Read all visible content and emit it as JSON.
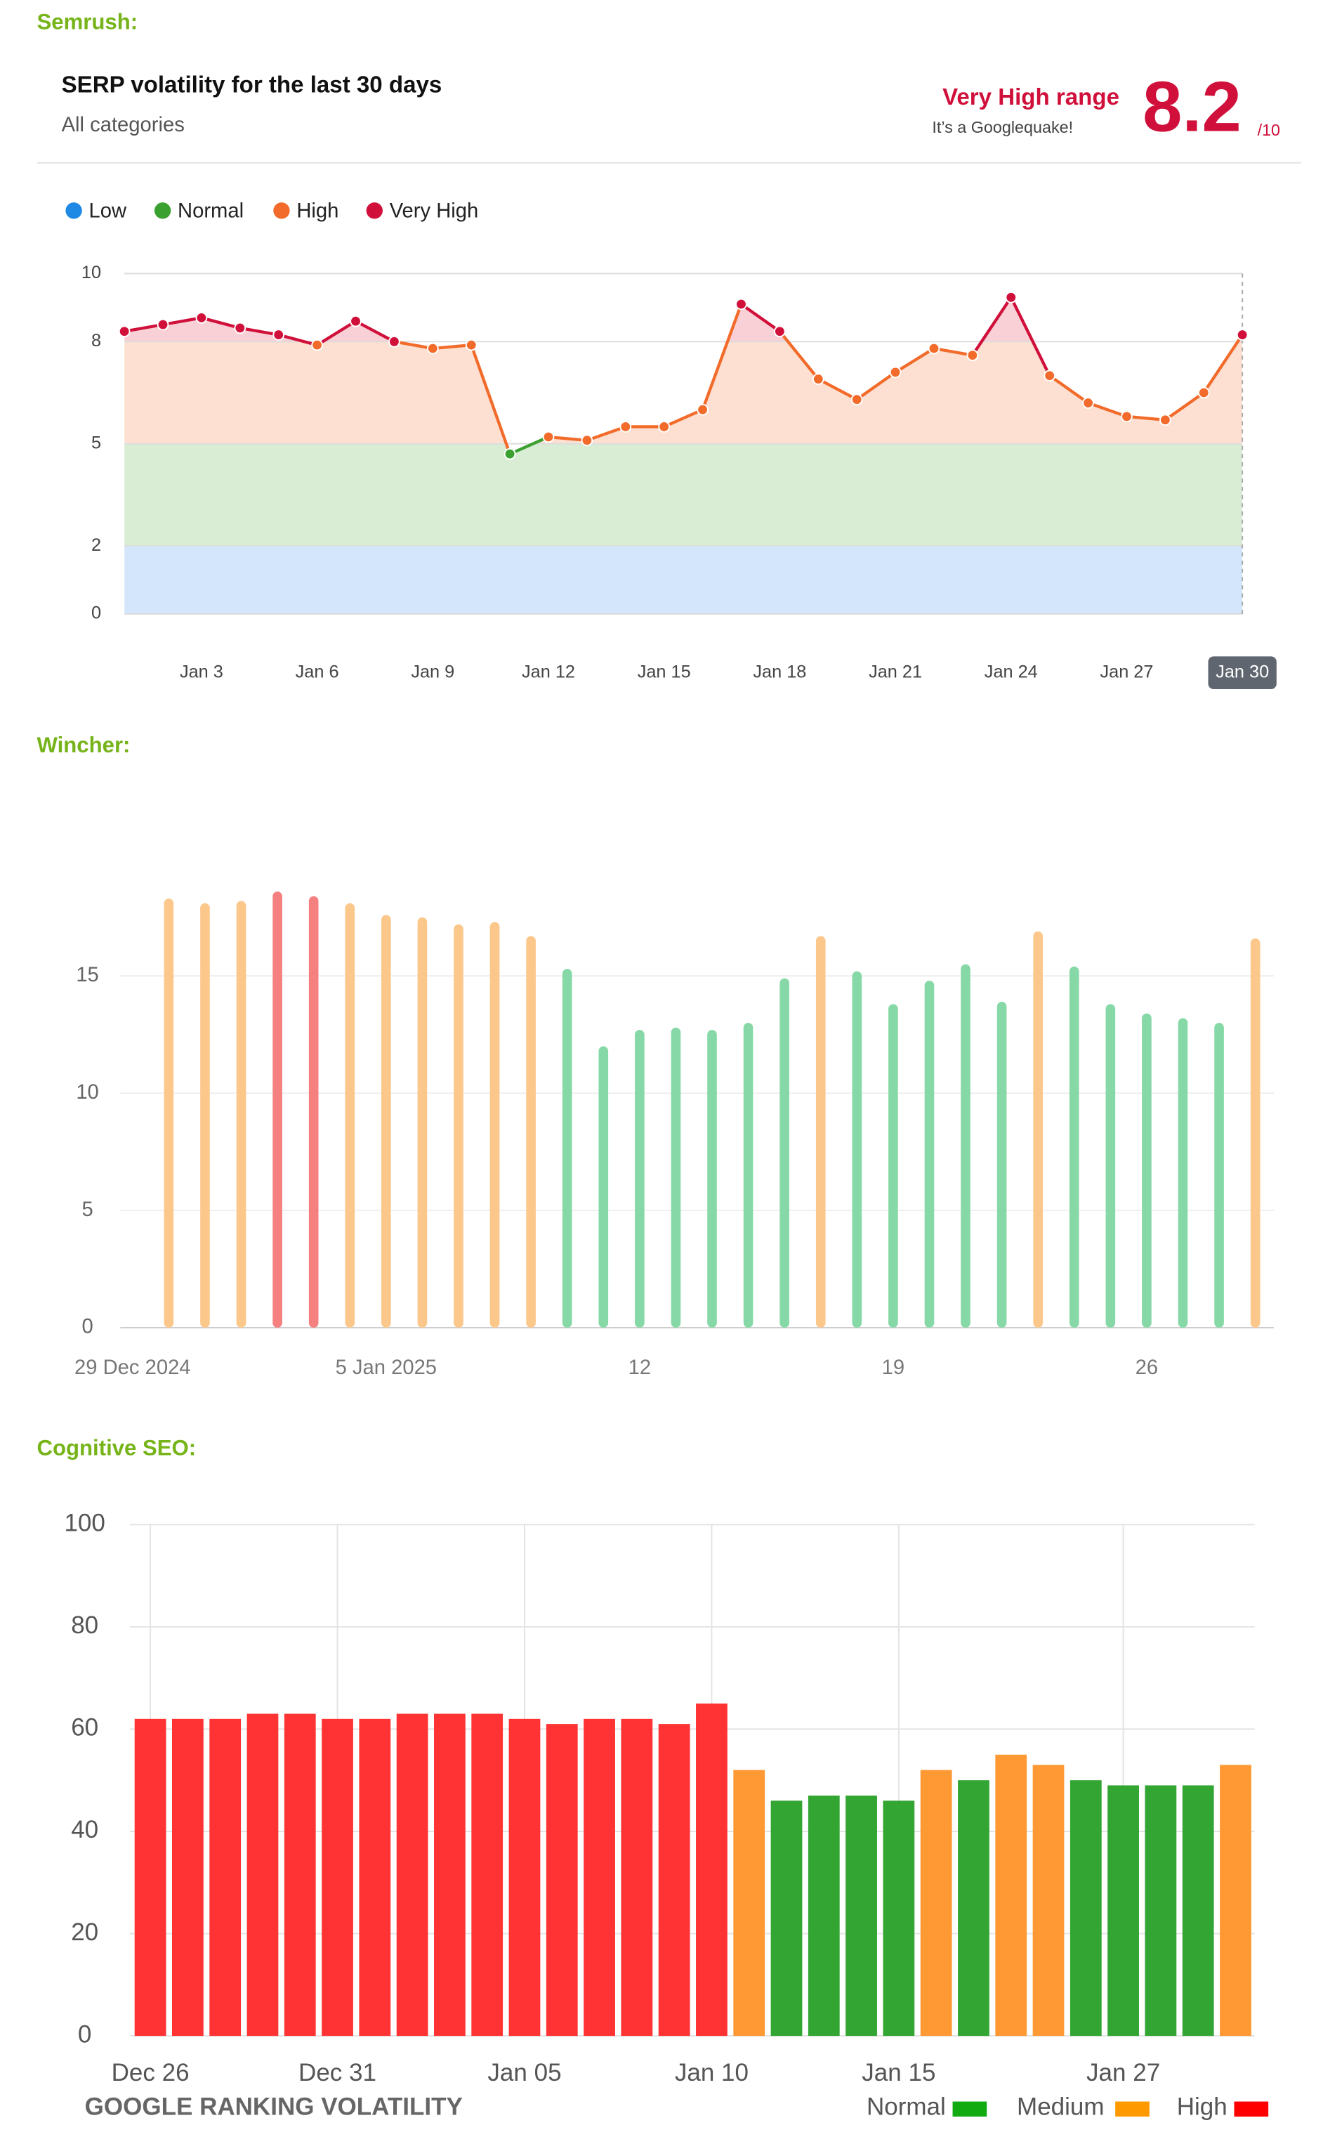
{
  "chart_data": [
    {
      "type": "line",
      "source": "Semrush:",
      "title": "SERP volatility for the last 30 days",
      "subtitle": "All categories",
      "range_label": "Very High range",
      "range_note": "It’s a Googlequake!",
      "score": 8.2,
      "score_suffix": "/10",
      "levels": [
        {
          "name": "Low",
          "color": "#1e88e5",
          "fill": "#d3e6fb",
          "range": [
            0,
            2
          ]
        },
        {
          "name": "Normal",
          "color": "#3aa030",
          "fill": "#d9ecd4",
          "range": [
            2,
            5
          ]
        },
        {
          "name": "High",
          "color": "#f26b2a",
          "fill": "#fde0d2",
          "range": [
            5,
            8
          ]
        },
        {
          "name": "Very High",
          "color": "#d0103a",
          "fill": "#f9d0d6",
          "range": [
            8,
            10
          ]
        }
      ],
      "categories": [
        null,
        null,
        "Jan 3",
        null,
        null,
        "Jan 6",
        null,
        null,
        "Jan 9",
        null,
        null,
        "Jan 12",
        null,
        null,
        "Jan 15",
        null,
        null,
        "Jan 18",
        null,
        null,
        "Jan 21",
        null,
        null,
        "Jan 24",
        null,
        null,
        "Jan 27",
        null,
        null,
        "Jan 30"
      ],
      "values": [
        8.3,
        8.5,
        8.7,
        8.4,
        8.2,
        7.9,
        8.6,
        8.0,
        7.8,
        7.9,
        4.7,
        5.2,
        5.1,
        5.5,
        5.5,
        6.0,
        9.1,
        8.3,
        6.9,
        6.3,
        7.1,
        7.8,
        7.6,
        9.3,
        7.0,
        6.2,
        5.8,
        5.7,
        6.5,
        8.2
      ],
      "ylim": [
        0,
        10
      ],
      "yticks": [
        0,
        2,
        5,
        8,
        10
      ],
      "grid": true
    },
    {
      "type": "bar",
      "source": "Wincher:",
      "categories": [
        "29 Dec 2024",
        null,
        null,
        null,
        null,
        null,
        null,
        "5 Jan 2025",
        null,
        null,
        null,
        null,
        null,
        null,
        "12",
        null,
        null,
        null,
        null,
        null,
        null,
        "19",
        null,
        null,
        null,
        null,
        null,
        null,
        "26",
        null,
        null,
        null
      ],
      "values": [
        null,
        18.3,
        18.1,
        18.2,
        18.6,
        18.4,
        18.1,
        17.6,
        17.5,
        17.2,
        17.3,
        16.7,
        15.3,
        12.0,
        12.7,
        12.8,
        12.7,
        13.0,
        14.9,
        16.7,
        15.2,
        13.8,
        14.8,
        15.5,
        13.9,
        16.9,
        15.4,
        13.8,
        13.4,
        13.2,
        13.0,
        16.6
      ],
      "colors": [
        null,
        "#fcc78b",
        "#fcc78b",
        "#fcc78b",
        "#f48080",
        "#f48080",
        "#fcc78b",
        "#fcc78b",
        "#fcc78b",
        "#fcc78b",
        "#fcc78b",
        "#fcc78b",
        "#86d9a6",
        "#86d9a6",
        "#86d9a6",
        "#86d9a6",
        "#86d9a6",
        "#86d9a6",
        "#86d9a6",
        "#fcc78b",
        "#86d9a6",
        "#86d9a6",
        "#86d9a6",
        "#86d9a6",
        "#86d9a6",
        "#fcc78b",
        "#86d9a6",
        "#86d9a6",
        "#86d9a6",
        "#86d9a6",
        "#86d9a6",
        "#fcc78b"
      ],
      "ylim": [
        0,
        20
      ],
      "yticks": [
        0,
        5,
        10,
        15
      ],
      "grid": true
    },
    {
      "type": "bar",
      "source": "Cognitive SEO:",
      "title": "GOOGLE RANKING VOLATILITY",
      "legend": [
        {
          "name": "Normal",
          "color": "#11aa11"
        },
        {
          "name": "Medium",
          "color": "#ff9900"
        },
        {
          "name": "High",
          "color": "#ff0000"
        }
      ],
      "categories": [
        "Dec 26",
        null,
        null,
        null,
        null,
        "Dec 31",
        null,
        null,
        null,
        null,
        "Jan 05",
        null,
        null,
        null,
        null,
        "Jan 10",
        null,
        null,
        null,
        null,
        "Jan 15",
        null,
        null,
        null,
        null,
        null,
        "Jan 27",
        null,
        null,
        null
      ],
      "values": [
        62,
        62,
        62,
        63,
        63,
        62,
        62,
        63,
        63,
        63,
        62,
        61,
        62,
        62,
        61,
        65,
        52,
        46,
        47,
        47,
        46,
        52,
        50,
        55,
        53,
        50,
        49,
        49,
        49,
        53
      ],
      "colors": [
        "#ff3333",
        "#ff3333",
        "#ff3333",
        "#ff3333",
        "#ff3333",
        "#ff3333",
        "#ff3333",
        "#ff3333",
        "#ff3333",
        "#ff3333",
        "#ff3333",
        "#ff3333",
        "#ff3333",
        "#ff3333",
        "#ff3333",
        "#ff3333",
        "#ff9933",
        "#33a532",
        "#33a532",
        "#33a532",
        "#33a532",
        "#ff9933",
        "#33a532",
        "#ff9933",
        "#ff9933",
        "#33a532",
        "#33a532",
        "#33a532",
        "#33a532",
        "#ff9933"
      ],
      "ylim": [
        0,
        100
      ],
      "yticks": [
        0,
        20,
        40,
        60,
        80,
        100
      ],
      "grid": true
    }
  ]
}
